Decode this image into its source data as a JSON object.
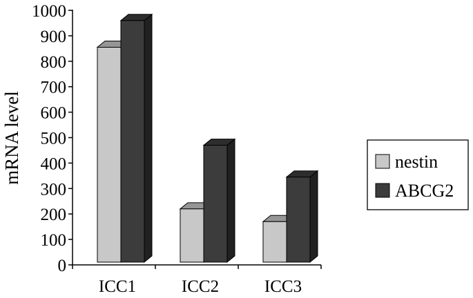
{
  "chart_data": {
    "type": "bar",
    "categories": [
      "ICC1",
      "ICC2",
      "ICC3"
    ],
    "series": [
      {
        "name": "nestin",
        "values": [
          855,
          220,
          170
        ],
        "color": "#c8c8c8"
      },
      {
        "name": "ABCG2",
        "values": [
          960,
          470,
          345
        ],
        "color": "#3c3c3c"
      }
    ],
    "ylabel": "mRNA level",
    "ylim": [
      0,
      1000
    ],
    "yticks": [
      0,
      100,
      200,
      300,
      400,
      500,
      600,
      700,
      800,
      900,
      1000
    ],
    "legend_position": "right",
    "grid": false,
    "style": "3d-bar"
  }
}
